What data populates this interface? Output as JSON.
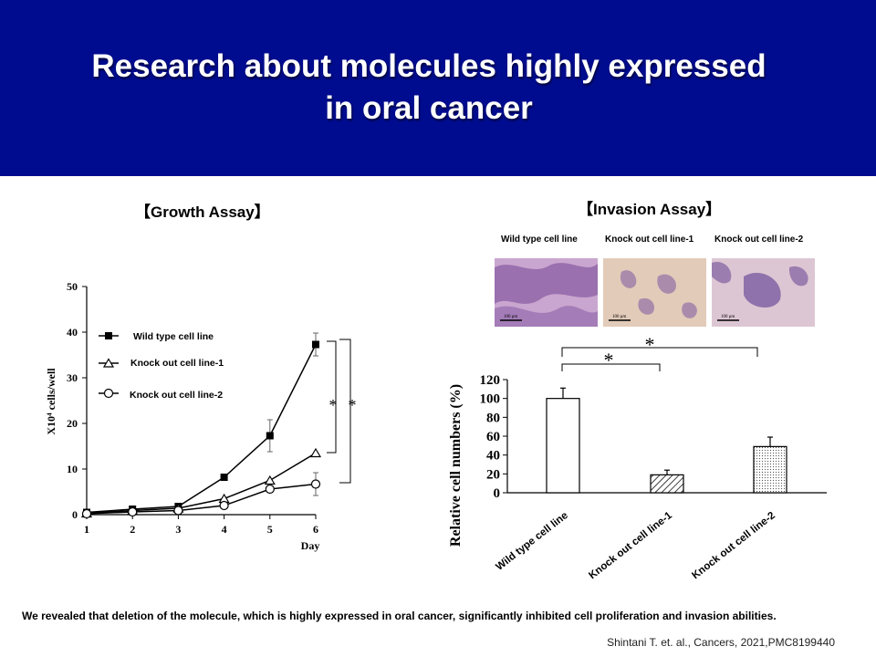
{
  "header": {
    "title_line1": "Research about molecules highly expressed",
    "title_line2": "in oral cancer",
    "background": "#000c8f"
  },
  "growth": {
    "section_title": "【Growth Assay】",
    "legend": [
      {
        "label": "Wild type cell line",
        "marker": "filled-square"
      },
      {
        "label": "Knock out cell line-1",
        "marker": "open-triangle"
      },
      {
        "label": "Knock out cell line-2",
        "marker": "open-circle"
      }
    ],
    "significance": [
      "*",
      "*"
    ]
  },
  "invasion": {
    "section_title": "【Invasion Assay】",
    "photo_labels": [
      "Wild type cell line",
      "Knock out cell line-1",
      "Knock out cell line-2"
    ],
    "scale_bar_label": "100 μm",
    "significance": [
      "*",
      "*"
    ]
  },
  "footer": {
    "note": "We revealed that deletion of the molecule, which is highly expressed in oral cancer, significantly inhibited cell proliferation and invasion abilities.",
    "citation": "Shintani T. et. al., Cancers, 2021,PMC8199440"
  },
  "chart_data": [
    {
      "type": "line",
      "title": "",
      "xlabel": "Day",
      "ylabel": "X10⁴ cells/well",
      "x": [
        1,
        2,
        3,
        4,
        5,
        6
      ],
      "xlim": [
        1,
        6
      ],
      "ylim": [
        0,
        50
      ],
      "yticks": [
        0,
        10,
        20,
        30,
        40,
        50
      ],
      "legend_position": "top-left",
      "grid": false,
      "series": [
        {
          "name": "Wild type cell line",
          "values": [
            0.5,
            1.2,
            1.8,
            8.2,
            17.3,
            37.3
          ],
          "errors": [
            0,
            0,
            0,
            0,
            3.5,
            2.5
          ]
        },
        {
          "name": "Knock out cell line-1",
          "values": [
            0.3,
            0.9,
            1.4,
            3.5,
            7.5,
            13.5
          ],
          "errors": [
            0,
            0,
            0,
            0,
            0,
            0
          ]
        },
        {
          "name": "Knock out cell line-2",
          "values": [
            0.2,
            0.6,
            0.9,
            2.0,
            5.6,
            6.7
          ],
          "errors": [
            0,
            0,
            0,
            0,
            0,
            2.5
          ]
        }
      ]
    },
    {
      "type": "bar",
      "title": "",
      "xlabel": "",
      "ylabel": "Relative cell numbers (%)",
      "categories": [
        "Wild type cell line",
        "Knock out cell line-1",
        "Knock out cell line-2"
      ],
      "values": [
        100,
        19,
        49
      ],
      "errors": [
        11,
        5,
        10
      ],
      "fills": [
        "open",
        "hatched",
        "dotted"
      ],
      "ylim": [
        0,
        120
      ],
      "yticks": [
        0,
        20,
        40,
        60,
        80,
        100,
        120
      ],
      "grid": false
    }
  ]
}
